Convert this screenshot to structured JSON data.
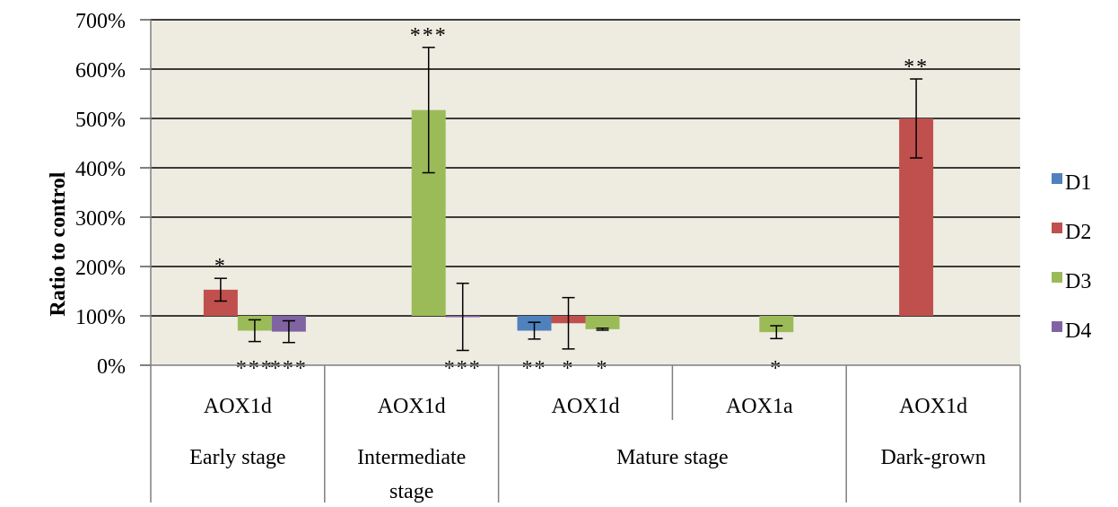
{
  "chart_data": {
    "type": "bar",
    "title": "",
    "ylabel": "Ratio to control",
    "ylim": [
      0,
      700
    ],
    "ytick_step": 100,
    "y_format": "percent",
    "baseline": 100,
    "grid": true,
    "legend_placement": "right",
    "plot_background": "#eeece1",
    "categories": [
      {
        "gene": "AOX1d",
        "group": "Early stage"
      },
      {
        "gene": "AOX1d",
        "group": "Intermediate stage"
      },
      {
        "gene": "AOX1d",
        "group": "Mature stage"
      },
      {
        "gene": "AOX1a",
        "group": "Mature stage"
      },
      {
        "gene": "AOX1d",
        "group": "Dark-grown"
      }
    ],
    "groups": [
      {
        "label": "Early stage",
        "span": 1
      },
      {
        "label": "Intermediate stage",
        "span": 1
      },
      {
        "label": "Mature stage",
        "span": 2
      },
      {
        "label": "Dark-grown",
        "span": 1
      }
    ],
    "series": [
      {
        "name": "D1",
        "color": "#4f81bd",
        "values": [
          null,
          null,
          70,
          null,
          null
        ],
        "error": [
          null,
          null,
          17,
          null,
          null
        ],
        "significance": [
          "",
          "",
          "**",
          "",
          ""
        ]
      },
      {
        "name": "D2",
        "color": "#c0504d",
        "values": [
          153,
          null,
          85,
          null,
          500
        ],
        "error": [
          23,
          null,
          52,
          null,
          80
        ],
        "significance": [
          "*",
          "",
          "*",
          "",
          "**"
        ]
      },
      {
        "name": "D3",
        "color": "#9bbb59",
        "values": [
          70,
          517,
          73,
          67,
          null
        ],
        "error": [
          22,
          127,
          2,
          13,
          null
        ],
        "significance": [
          "***",
          "***",
          "*",
          "*",
          ""
        ]
      },
      {
        "name": "D4",
        "color": "#8064a2",
        "values": [
          68,
          98,
          null,
          null,
          null
        ],
        "error": [
          22,
          68,
          null,
          null,
          null
        ],
        "significance": [
          "***",
          "***",
          "",
          "",
          ""
        ]
      }
    ]
  }
}
